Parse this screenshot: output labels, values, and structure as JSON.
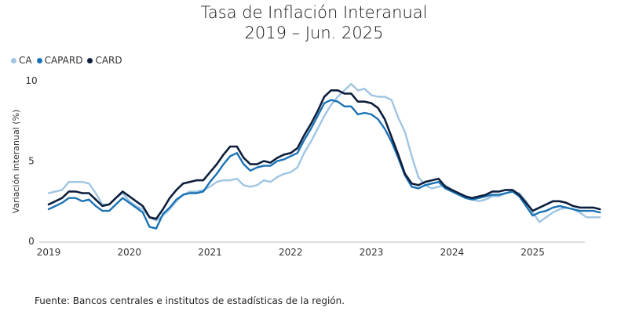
{
  "title_line1": "Tasa de Inflación Interanual",
  "title_line2": "2019 – Jun. 2025",
  "source": "Fuente: Bancos centrales e institutos de estadísticas de la región.",
  "chart_data": {
    "type": "line",
    "ylabel": "Variación interanual (%)",
    "xlabel": "",
    "ylim": [
      0,
      10
    ],
    "yticks": [
      "0",
      "5",
      "10"
    ],
    "xticks": [
      "2019",
      "2020",
      "2021",
      "2022",
      "2023",
      "2024",
      "2025"
    ],
    "grid": false,
    "legend_position": "top-left",
    "x_start": "2019-01",
    "x_end": "2025-06",
    "series": [
      {
        "name": "CA",
        "color": "#9fc5e3",
        "values": [
          3.0,
          3.1,
          3.2,
          3.7,
          3.7,
          3.7,
          3.6,
          3.0,
          2.3,
          2.3,
          2.7,
          3.0,
          2.5,
          2.2,
          2.0,
          1.5,
          1.3,
          1.6,
          2.0,
          2.5,
          2.9,
          3.1,
          3.1,
          3.2,
          3.4,
          3.7,
          3.8,
          3.8,
          3.9,
          3.5,
          3.4,
          3.5,
          3.8,
          3.7,
          4.0,
          4.2,
          4.3,
          4.6,
          5.5,
          6.2,
          7.0,
          7.8,
          8.5,
          9.0,
          9.4,
          9.8,
          9.4,
          9.5,
          9.1,
          9.0,
          9.0,
          8.8,
          7.7,
          6.8,
          5.3,
          4.0,
          3.5,
          3.3,
          3.4,
          3.5,
          3.2,
          3.0,
          2.8,
          2.6,
          2.5,
          2.6,
          2.8,
          2.8,
          3.0,
          3.1,
          3.0,
          2.5,
          1.8,
          1.2,
          1.5,
          1.8,
          2.0,
          2.1,
          2.0,
          1.8,
          1.5,
          1.5,
          1.5
        ]
      },
      {
        "name": "CAPARD",
        "color": "#1a72b5",
        "values": [
          2.0,
          2.2,
          2.4,
          2.7,
          2.7,
          2.5,
          2.6,
          2.2,
          1.9,
          1.9,
          2.3,
          2.7,
          2.4,
          2.1,
          1.8,
          0.9,
          0.8,
          1.7,
          2.1,
          2.6,
          2.9,
          3.0,
          3.0,
          3.1,
          3.7,
          4.2,
          4.8,
          5.3,
          5.5,
          4.8,
          4.4,
          4.6,
          4.7,
          4.7,
          5.0,
          5.1,
          5.3,
          5.5,
          6.3,
          7.0,
          7.8,
          8.6,
          8.8,
          8.7,
          8.4,
          8.4,
          7.9,
          8.0,
          7.9,
          7.6,
          7.0,
          6.2,
          5.2,
          4.1,
          3.4,
          3.3,
          3.5,
          3.6,
          3.7,
          3.3,
          3.1,
          2.9,
          2.7,
          2.6,
          2.7,
          2.8,
          2.9,
          2.9,
          3.0,
          3.1,
          2.8,
          2.2,
          1.6,
          1.8,
          1.9,
          2.1,
          2.2,
          2.1,
          2.0,
          1.9,
          1.9,
          1.9,
          1.8
        ]
      },
      {
        "name": "CARD",
        "color": "#0d1f3d",
        "values": [
          2.3,
          2.5,
          2.7,
          3.1,
          3.1,
          3.0,
          3.0,
          2.6,
          2.2,
          2.3,
          2.7,
          3.1,
          2.8,
          2.5,
          2.2,
          1.5,
          1.4,
          2.0,
          2.7,
          3.2,
          3.6,
          3.7,
          3.8,
          3.8,
          4.3,
          4.8,
          5.4,
          5.9,
          5.9,
          5.2,
          4.8,
          4.8,
          5.0,
          4.9,
          5.2,
          5.4,
          5.5,
          5.8,
          6.6,
          7.3,
          8.1,
          9.0,
          9.4,
          9.4,
          9.2,
          9.2,
          8.7,
          8.7,
          8.6,
          8.3,
          7.6,
          6.5,
          5.4,
          4.2,
          3.6,
          3.5,
          3.7,
          3.8,
          3.9,
          3.4,
          3.2,
          3.0,
          2.8,
          2.7,
          2.8,
          2.9,
          3.1,
          3.1,
          3.2,
          3.2,
          2.9,
          2.4,
          1.9,
          2.1,
          2.3,
          2.5,
          2.5,
          2.4,
          2.2,
          2.1,
          2.1,
          2.1,
          2.0
        ]
      }
    ]
  }
}
